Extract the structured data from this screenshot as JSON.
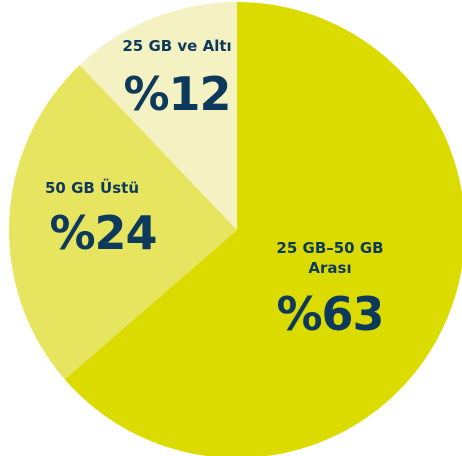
{
  "chart_data": {
    "type": "pie",
    "categories": [
      "25 GB–50 GB Arası",
      "50 GB Üstü",
      "25 GB ve Altı"
    ],
    "values": [
      63,
      24,
      12
    ],
    "value_labels": [
      "%63",
      "%24",
      "%12"
    ],
    "colors": [
      "#dcdb00",
      "#e7e55f",
      "#f4f1c2"
    ]
  }
}
